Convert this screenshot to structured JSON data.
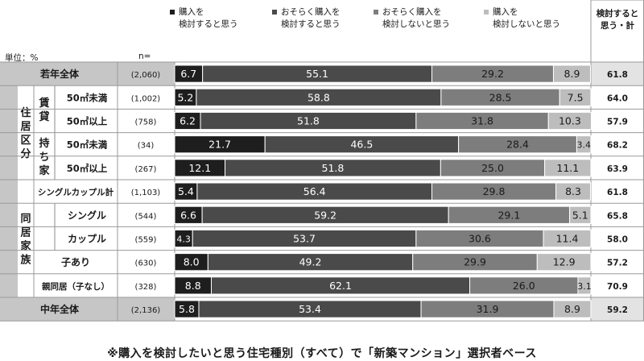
{
  "legend": [
    {
      "label": "購入を\n検討すると思う",
      "color": "#1e1e1e"
    },
    {
      "label": "おそらく購入を\n検討すると思う",
      "color": "#4a4a4a"
    },
    {
      "label": "おそらく購入を\n検討しないと思う",
      "color": "#7d7d7d"
    },
    {
      "label": "購入を\n検討しないと思う",
      "color": "#bdbdbd"
    }
  ],
  "total_header": "検討すると\n思う・計",
  "unit_label": "単位：%",
  "n_label": "n=",
  "footnote": "※購入を検討したいと思う住宅種別（すべて）で「新築マンション」選択者ベース",
  "groups": [
    {
      "label": "住居区分",
      "rows": [
        1,
        4
      ]
    },
    {
      "label": "同居家族",
      "rows": [
        5,
        9
      ]
    }
  ],
  "subgroups": [
    {
      "label": "賃貸",
      "rows": [
        1,
        2
      ]
    },
    {
      "label": "持ち家",
      "rows": [
        3,
        4
      ]
    }
  ],
  "chart_data": {
    "type": "bar",
    "orientation": "horizontal",
    "stacked": true,
    "unit": "%",
    "xlim": [
      0,
      100
    ],
    "series_names": [
      "購入を検討すると思う",
      "おそらく購入を検討すると思う",
      "おそらく購入を検討しないと思う",
      "購入を検討しないと思う"
    ],
    "series_colors": [
      "#1e1e1e",
      "#4a4a4a",
      "#7d7d7d",
      "#bdbdbd"
    ],
    "rows": [
      {
        "label": "若年全体",
        "n": "(2,060)",
        "values": [
          6.7,
          55.1,
          29.2,
          8.9
        ],
        "total": "61.8",
        "style": "summary"
      },
      {
        "label": "50㎡未満",
        "n": "(1,002)",
        "values": [
          5.2,
          58.8,
          28.5,
          7.5
        ],
        "total": "64.0",
        "style": "sub"
      },
      {
        "label": "50㎡以上",
        "n": "(758)",
        "values": [
          6.2,
          51.8,
          31.8,
          10.3
        ],
        "total": "57.9",
        "style": "sub"
      },
      {
        "label": "50㎡未満",
        "n": "(34)",
        "values": [
          21.7,
          46.5,
          28.4,
          3.4
        ],
        "total": "68.2",
        "style": "sub"
      },
      {
        "label": "50㎡以上",
        "n": "(267)",
        "values": [
          12.1,
          51.8,
          25.0,
          11.1
        ],
        "total": "63.9",
        "style": "sub"
      },
      {
        "label": "シングルカップル計",
        "n": "(1,103)",
        "values": [
          5.4,
          56.4,
          29.8,
          8.3
        ],
        "total": "61.8",
        "style": "group"
      },
      {
        "label": "シングル",
        "n": "(544)",
        "values": [
          6.6,
          59.2,
          29.1,
          5.1
        ],
        "total": "65.8",
        "style": "indent"
      },
      {
        "label": "カップル",
        "n": "(559)",
        "values": [
          4.3,
          53.7,
          30.6,
          11.4
        ],
        "total": "58.0",
        "style": "indent"
      },
      {
        "label": "子あり",
        "n": "(630)",
        "values": [
          8.0,
          49.2,
          29.9,
          12.9
        ],
        "total": "57.2",
        "style": "group"
      },
      {
        "label": "親同居（子なし）",
        "n": "(328)",
        "values": [
          8.8,
          62.1,
          26.0,
          3.1
        ],
        "total": "70.9",
        "style": "group"
      },
      {
        "label": "中年全体",
        "n": "(2,136)",
        "values": [
          5.8,
          53.4,
          31.9,
          8.9
        ],
        "total": "59.2",
        "style": "summary"
      }
    ]
  }
}
